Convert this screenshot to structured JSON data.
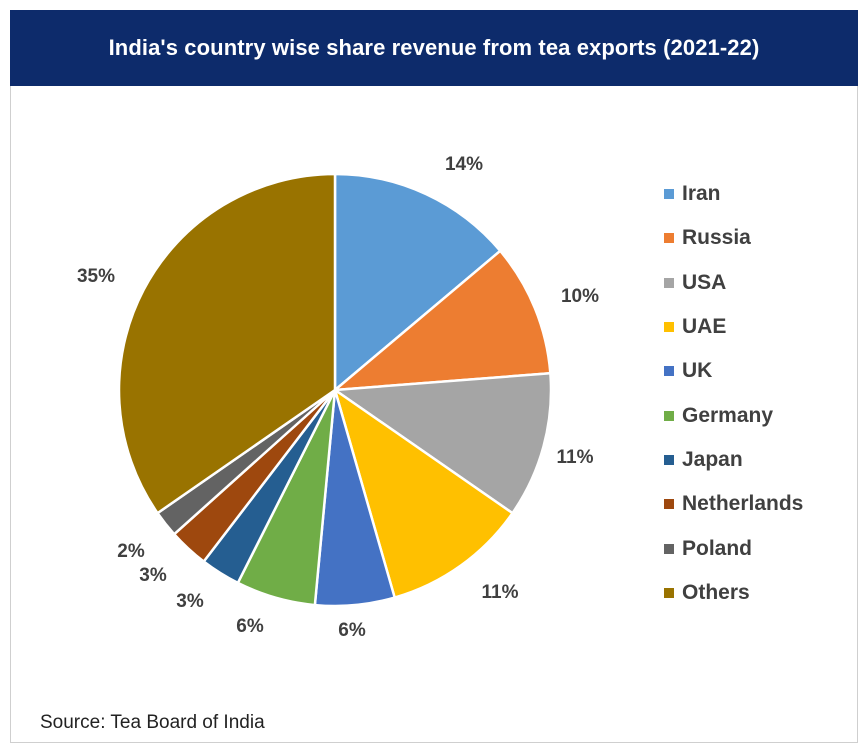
{
  "header": {
    "title": "India's country wise share revenue from tea exports (2021-22)"
  },
  "source": "Source: Tea Board of India",
  "chart_data": {
    "type": "pie",
    "title": "India's country wise share revenue from tea exports (2021-22)",
    "categories": [
      "Iran",
      "Russia",
      "USA",
      "UAE",
      "UK",
      "Germany",
      "Japan",
      "Netherlands",
      "Poland",
      "Others"
    ],
    "values": [
      14,
      10,
      11,
      11,
      6,
      6,
      3,
      3,
      2,
      35
    ],
    "labels": [
      "14%",
      "10%",
      "11%",
      "11%",
      "6%",
      "6%",
      "3%",
      "3%",
      "2%",
      "35%"
    ],
    "colors": [
      "#5b9bd5",
      "#ed7d31",
      "#a5a5a5",
      "#ffc000",
      "#4472c4",
      "#70ad47",
      "#255e91",
      "#9e480e",
      "#636363",
      "#997300"
    ],
    "legend_position": "right"
  }
}
